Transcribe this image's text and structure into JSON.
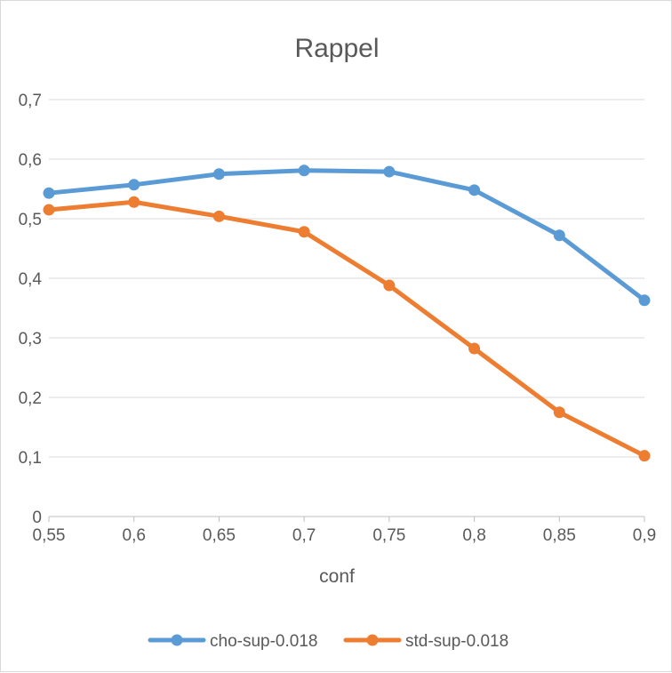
{
  "chart_data": {
    "type": "line",
    "title": "Rappel",
    "xlabel": "conf",
    "ylabel": "",
    "x": [
      "0,55",
      "0,6",
      "0,65",
      "0,7",
      "0,75",
      "0,8",
      "0,85",
      "0,9"
    ],
    "ylim": [
      0,
      0.7
    ],
    "yticks": [
      0,
      0.1,
      0.2,
      0.3,
      0.4,
      0.5,
      0.6,
      0.7
    ],
    "ytick_labels": [
      "0",
      "0,1",
      "0,2",
      "0,3",
      "0,4",
      "0,5",
      "0,6",
      "0,7"
    ],
    "grid": true,
    "legend_position": "bottom",
    "series": [
      {
        "name": "cho-sup-0.018",
        "color": "#5b9bd5",
        "values": [
          0.543,
          0.557,
          0.575,
          0.581,
          0.579,
          0.548,
          0.472,
          0.363
        ]
      },
      {
        "name": "std-sup-0.018",
        "color": "#ed7d31",
        "values": [
          0.515,
          0.528,
          0.504,
          0.478,
          0.388,
          0.282,
          0.175,
          0.102
        ]
      }
    ]
  }
}
